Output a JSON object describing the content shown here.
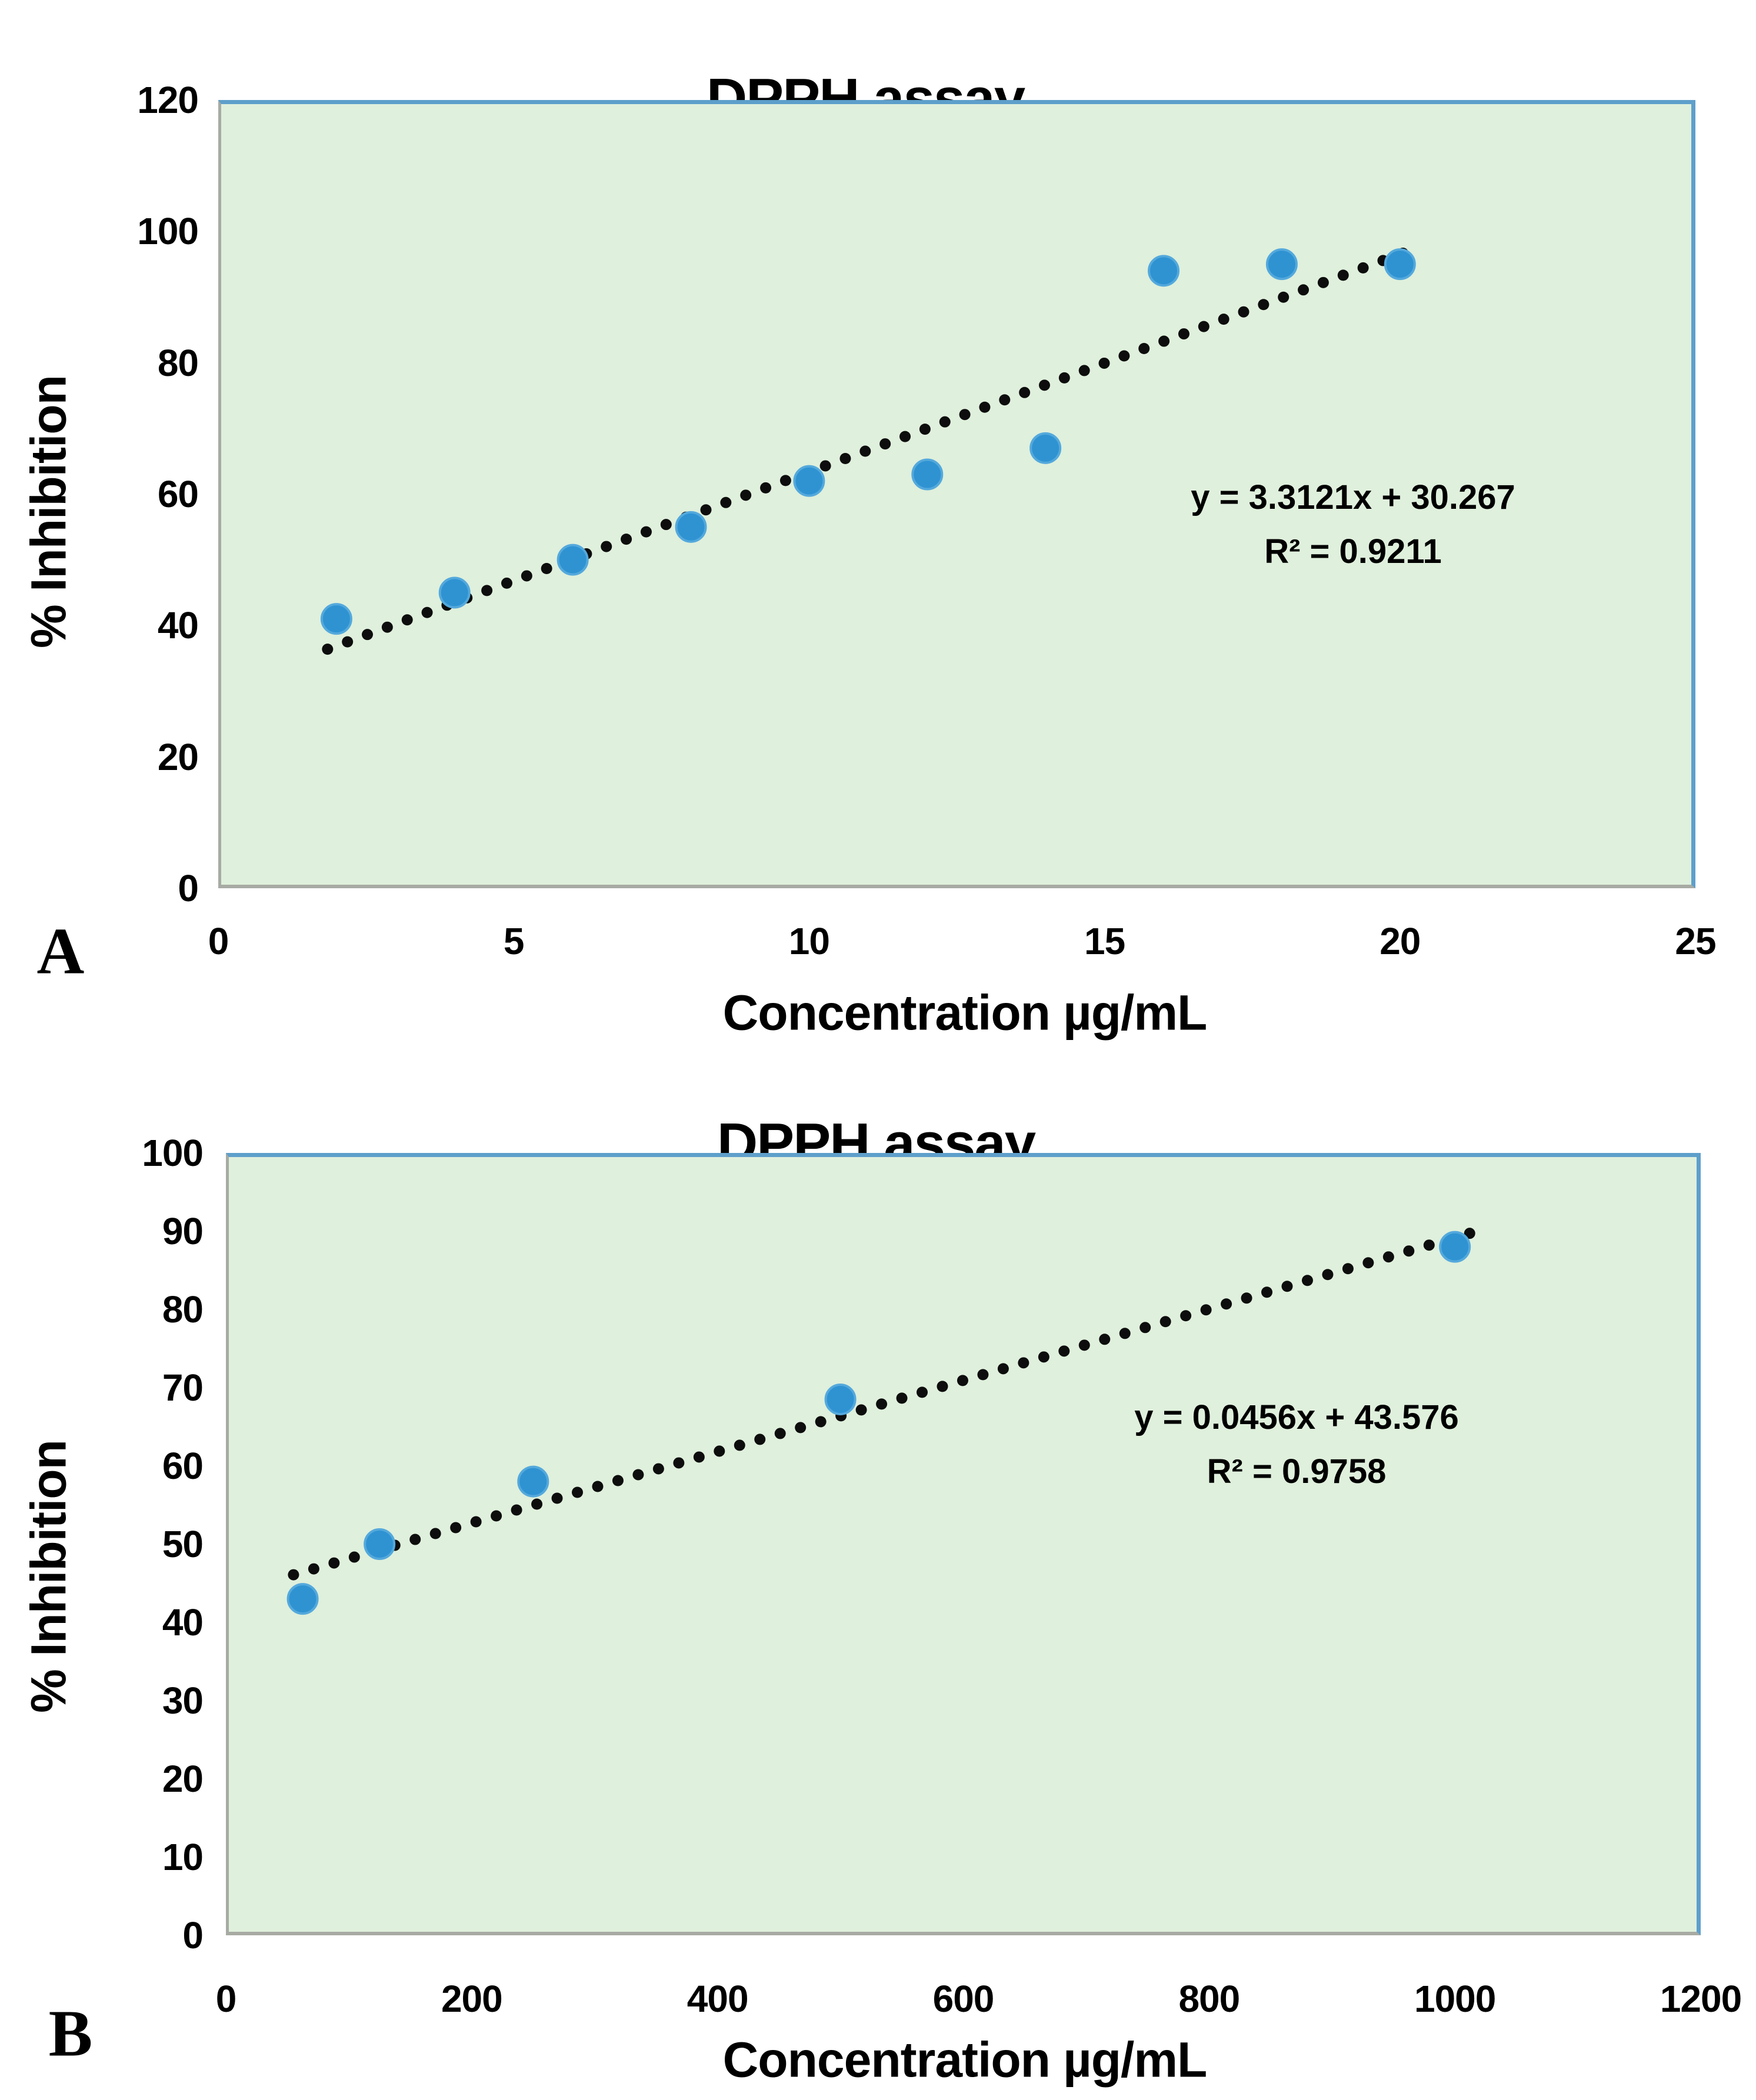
{
  "figure": {
    "background": "#ffffff",
    "panels": [
      "A",
      "B"
    ]
  },
  "colors": {
    "plot_fill": "#dff0dc",
    "frame_blue": "#5e9fcb",
    "axis_gray": "#a7aba3",
    "marker_blue": "#2f93d2",
    "marker_edge": "#54a9dc",
    "trendline_black": "#0d0d0d",
    "text": "#000000"
  },
  "chart_data": [
    {
      "type": "scatter",
      "panel_label": "A",
      "title": "DPPH assay",
      "xlabel": "Concentration µg/mL",
      "ylabel": "% Inhibition",
      "x": [
        2,
        4,
        6,
        8,
        10,
        12,
        14,
        16,
        18,
        20
      ],
      "y": [
        41,
        45,
        50,
        55,
        62,
        63,
        67,
        94,
        95,
        95
      ],
      "xlim": [
        0,
        25
      ],
      "ylim": [
        0,
        120
      ],
      "xticks": [
        0,
        5,
        10,
        15,
        20,
        25
      ],
      "yticks": [
        0,
        20,
        40,
        60,
        80,
        100,
        120
      ],
      "grid": false,
      "legend": "none",
      "marker_color": "#2f93d2",
      "trendline": {
        "style": "dotted",
        "color": "#0d0d0d",
        "slope": 3.3121,
        "intercept": 30.267,
        "x_start": 1.85,
        "x_end": 20.05,
        "equation": "y = 3.3121x + 30.267",
        "r_squared_label": "R² = 0.9211"
      }
    },
    {
      "type": "scatter",
      "panel_label": "B",
      "title": "DPPH assay",
      "xlabel": "Concentration µg/mL",
      "ylabel": "% Inhibition",
      "x": [
        62.5,
        125,
        250,
        500,
        1000
      ],
      "y": [
        43,
        50,
        58,
        68.5,
        88
      ],
      "xlim": [
        0,
        1200
      ],
      "ylim": [
        0,
        100
      ],
      "xticks": [
        0,
        200,
        400,
        600,
        800,
        1000,
        1200
      ],
      "yticks": [
        0,
        10,
        20,
        30,
        40,
        50,
        60,
        70,
        80,
        90,
        100
      ],
      "grid": false,
      "legend": "none",
      "marker_color": "#2f93d2",
      "trendline": {
        "style": "dotted",
        "color": "#0d0d0d",
        "slope": 0.0456,
        "intercept": 43.576,
        "x_start": 55,
        "x_end": 1012,
        "equation": "y = 0.0456x + 43.576",
        "r_squared_label": "R² = 0.9758"
      }
    }
  ]
}
